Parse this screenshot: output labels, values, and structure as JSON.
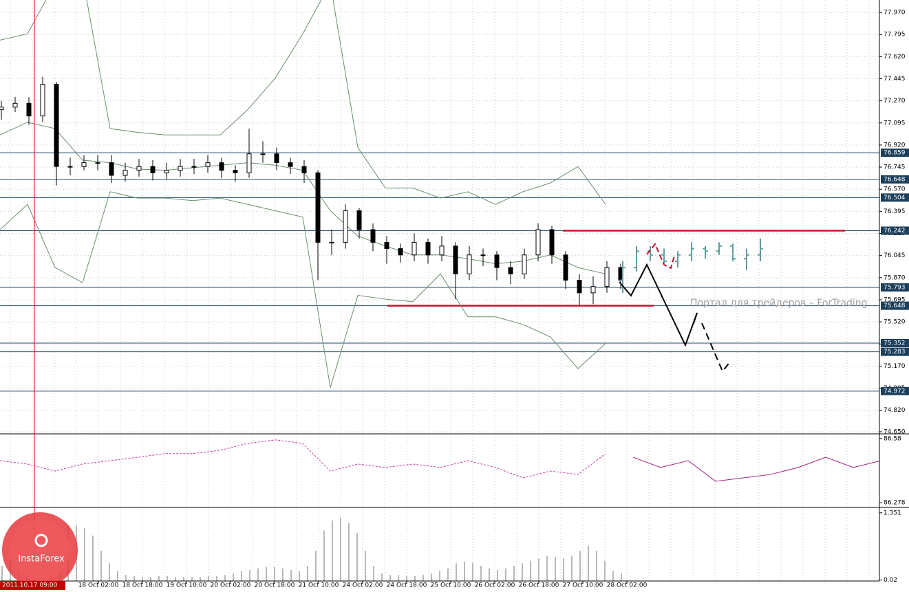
{
  "chart_data": {
    "type": "candlestick",
    "ylim": [
      74.639,
      78.068
    ],
    "yticks": [
      {
        "value": 77.97,
        "label": "77.970"
      },
      {
        "value": 77.795,
        "label": "77.795"
      },
      {
        "value": 77.62,
        "label": "77.620"
      },
      {
        "value": 77.445,
        "label": "77.445"
      },
      {
        "value": 77.27,
        "label": "77.270"
      },
      {
        "value": 77.095,
        "label": "77.095"
      },
      {
        "value": 76.92,
        "label": "76.920"
      },
      {
        "value": 76.745,
        "label": "76.745"
      },
      {
        "value": 76.57,
        "label": "76.570"
      },
      {
        "value": 76.395,
        "label": "76.395"
      },
      {
        "value": 76.22,
        "label": "76.220"
      },
      {
        "value": 76.045,
        "label": "76.045"
      },
      {
        "value": 75.87,
        "label": "75.870"
      },
      {
        "value": 75.695,
        "label": "75.695"
      },
      {
        "value": 75.52,
        "label": "75.520"
      },
      {
        "value": 75.345,
        "label": "75.345"
      },
      {
        "value": 75.17,
        "label": "75.170"
      },
      {
        "value": 74.995,
        "label": "74.995"
      },
      {
        "value": 74.82,
        "label": "74.820"
      },
      {
        "value": 74.65,
        "label": "74.650"
      }
    ],
    "levels": [
      {
        "value": 76.859,
        "label": "76.859"
      },
      {
        "value": 76.648,
        "label": "76.648"
      },
      {
        "value": 76.504,
        "label": "76.504"
      },
      {
        "value": 76.242,
        "label": "76.242"
      },
      {
        "value": 75.793,
        "label": "75.793"
      },
      {
        "value": 75.648,
        "label": "75.648"
      },
      {
        "value": 75.352,
        "label": "75.352"
      },
      {
        "value": 75.283,
        "label": "75.283"
      },
      {
        "value": 74.972,
        "label": "74.972"
      }
    ],
    "categories": [
      "18 Oct 02:00",
      "18 Oct 18:00",
      "19 Oct 10:00",
      "20 Oct 02:00",
      "20 Oct 18:00",
      "21 Oct 10:00",
      "24 Oct 02:00",
      "24 Oct 18:00",
      "25 Oct 10:00",
      "26 Oct 02:00",
      "26 Oct 18:00",
      "27 Oct 10:00",
      "28 Oct 02:00"
    ],
    "crosshair_label": "2011.10.17 09:00",
    "ohlc": [
      [
        77.2,
        77.27,
        77.12,
        77.22
      ],
      [
        77.22,
        77.3,
        77.18,
        77.25
      ],
      [
        77.25,
        77.3,
        77.08,
        77.15
      ],
      [
        77.15,
        77.46,
        77.1,
        77.4
      ],
      [
        77.4,
        77.42,
        76.6,
        76.75
      ],
      [
        76.75,
        76.82,
        76.68,
        76.75
      ],
      [
        76.75,
        76.84,
        76.72,
        76.78
      ],
      [
        76.78,
        76.84,
        76.72,
        76.78
      ],
      [
        76.78,
        76.84,
        76.62,
        76.68
      ],
      [
        76.68,
        76.78,
        76.63,
        76.72
      ],
      [
        76.72,
        76.81,
        76.67,
        76.75
      ],
      [
        76.75,
        76.8,
        76.64,
        76.7
      ],
      [
        76.7,
        76.78,
        76.65,
        76.72
      ],
      [
        76.72,
        76.81,
        76.67,
        76.75
      ],
      [
        76.75,
        76.81,
        76.69,
        76.75
      ],
      [
        76.75,
        76.84,
        76.7,
        76.78
      ],
      [
        76.78,
        76.82,
        76.66,
        76.72
      ],
      [
        76.72,
        76.76,
        76.63,
        76.7
      ],
      [
        76.7,
        77.05,
        76.66,
        76.85
      ],
      [
        76.85,
        76.95,
        76.78,
        76.85
      ],
      [
        76.85,
        76.9,
        76.72,
        76.78
      ],
      [
        76.78,
        76.82,
        76.69,
        76.75
      ],
      [
        76.75,
        76.8,
        76.62,
        76.7
      ],
      [
        76.7,
        76.72,
        75.85,
        76.15
      ],
      [
        76.15,
        76.25,
        76.05,
        76.15
      ],
      [
        76.15,
        76.45,
        76.1,
        76.4
      ],
      [
        76.4,
        76.42,
        76.18,
        76.25
      ],
      [
        76.25,
        76.3,
        76.08,
        76.15
      ],
      [
        76.15,
        76.2,
        75.98,
        76.1
      ],
      [
        76.1,
        76.14,
        75.99,
        76.05
      ],
      [
        76.05,
        76.22,
        76.0,
        76.15
      ],
      [
        76.15,
        76.18,
        75.98,
        76.05
      ],
      [
        76.05,
        76.2,
        76.0,
        76.12
      ],
      [
        76.12,
        76.15,
        75.7,
        75.9
      ],
      [
        75.9,
        76.12,
        75.85,
        76.05
      ],
      [
        76.05,
        76.1,
        75.96,
        76.05
      ],
      [
        76.05,
        76.08,
        75.85,
        75.95
      ],
      [
        75.95,
        76.0,
        75.82,
        75.9
      ],
      [
        75.9,
        76.1,
        75.86,
        76.05
      ],
      [
        76.05,
        76.3,
        76.0,
        76.25
      ],
      [
        76.25,
        76.28,
        75.98,
        76.05
      ],
      [
        76.05,
        76.08,
        75.78,
        75.85
      ],
      [
        75.85,
        75.9,
        75.65,
        75.75
      ],
      [
        75.75,
        75.88,
        75.66,
        75.8
      ],
      [
        75.8,
        76.0,
        75.75,
        75.95
      ],
      [
        75.95,
        75.98,
        75.78,
        75.85
      ]
    ],
    "forecast_ohlc": [
      [
        75.85,
        76.0,
        75.75,
        75.95
      ],
      [
        75.95,
        76.12,
        75.92,
        76.08
      ],
      [
        76.08,
        76.12,
        76.0,
        76.05
      ],
      [
        76.05,
        76.1,
        75.98,
        76.0
      ],
      [
        76.0,
        76.08,
        75.95,
        76.05
      ],
      [
        76.05,
        76.15,
        76.0,
        76.1
      ],
      [
        76.1,
        76.12,
        76.02,
        76.08
      ],
      [
        76.08,
        76.15,
        76.05,
        76.12
      ],
      [
        76.12,
        76.14,
        76.0,
        76.02
      ],
      [
        76.02,
        76.1,
        75.93,
        76.05
      ],
      [
        76.05,
        76.18,
        76.0,
        76.1
      ]
    ],
    "bands": {
      "upper": [
        77.75,
        77.8,
        78.2,
        78.25,
        77.05,
        77.02,
        77.0,
        77.0,
        77.0,
        77.2,
        77.45,
        77.8,
        78.2,
        76.9,
        76.58,
        76.58,
        76.5,
        76.55,
        76.45,
        76.55,
        76.62,
        76.75,
        76.45
      ],
      "middle": [
        77.0,
        77.1,
        77.05,
        76.8,
        76.78,
        76.73,
        76.72,
        76.74,
        76.76,
        76.78,
        76.76,
        76.72,
        76.4,
        76.2,
        76.12,
        76.05,
        76.05,
        76.02,
        75.98,
        76.0,
        76.05,
        75.95,
        75.9
      ],
      "lower": [
        76.25,
        76.45,
        75.95,
        75.83,
        76.55,
        76.5,
        76.5,
        76.48,
        76.5,
        76.45,
        76.4,
        76.35,
        75.0,
        75.73,
        75.7,
        75.68,
        75.9,
        75.56,
        75.56,
        75.5,
        75.4,
        75.15,
        75.35
      ]
    },
    "oscillator": {
      "ylim": [
        86.259,
        86.599
      ],
      "yticks": [
        {
          "value": 86.58,
          "label": "86.58"
        },
        86.278
      ],
      "values": [
        86.476,
        86.46,
        86.427,
        86.46,
        86.476,
        86.492,
        86.509,
        86.509,
        86.525,
        86.557,
        86.574,
        86.557,
        86.427,
        86.46,
        86.444,
        86.46,
        86.444,
        86.476,
        86.444,
        86.395,
        86.427,
        86.411,
        86.509,
        86.492,
        86.444,
        86.476,
        86.379,
        86.395,
        86.411,
        86.444,
        86.492,
        86.444,
        86.476
      ]
    },
    "histogram": {
      "ylim": [
        0,
        1.43
      ],
      "yticks": [
        1.351,
        0.02
      ],
      "values": [
        0.3,
        0.4,
        0.5,
        0.6,
        0.7,
        0.8,
        0.9,
        1.0,
        1.1,
        1.1,
        1.05,
        0.9,
        0.6,
        0.35,
        0.2,
        0.12,
        0.1,
        0.08,
        0.08,
        0.1,
        0.1,
        0.08,
        0.08,
        0.08,
        0.08,
        0.1,
        0.1,
        0.12,
        0.15,
        0.2,
        0.22,
        0.25,
        0.28,
        0.28,
        0.25,
        0.22,
        0.2,
        0.3,
        0.6,
        1.0,
        1.2,
        1.25,
        1.15,
        0.95,
        0.6,
        0.3,
        0.15,
        0.12,
        0.12,
        0.1,
        0.1,
        0.12,
        0.15,
        0.2,
        0.25,
        0.35,
        0.38,
        0.36,
        0.3,
        0.25,
        0.22,
        0.25,
        0.3,
        0.35,
        0.4,
        0.45,
        0.5,
        0.48,
        0.45,
        0.5,
        0.6,
        0.7,
        0.6,
        0.4,
        0.2,
        0.15
      ]
    },
    "watermark": "Портал для трейдеров – ForTrading",
    "logo": "InstaForex"
  }
}
